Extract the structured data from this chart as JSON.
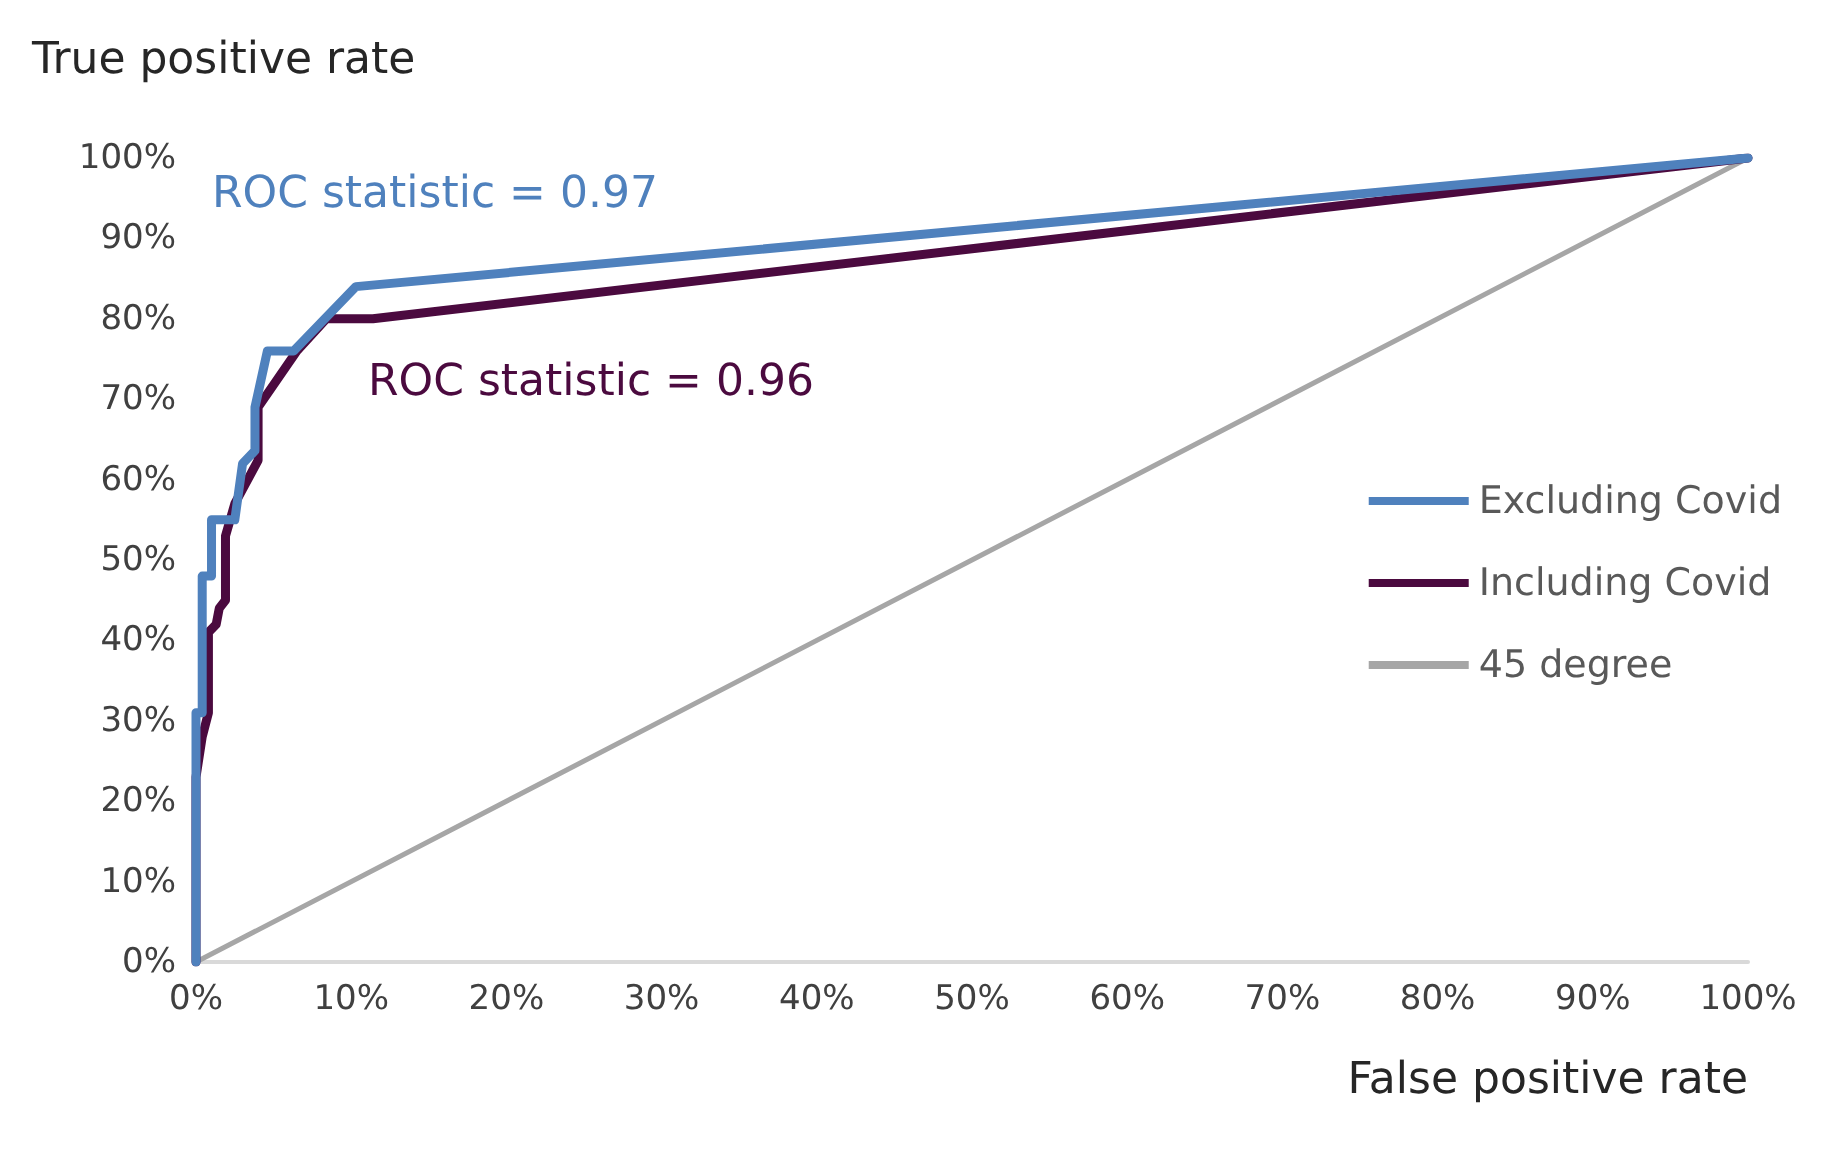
{
  "chart_data": {
    "type": "line",
    "xlabel": "False positive rate",
    "ylabel": "True positive rate",
    "series": [
      {
        "name": "Excluding Covid",
        "color": "#4f81bd",
        "x": [
          0,
          0,
          0.4,
          0.4,
          1,
          1,
          2.5,
          3,
          3.8,
          3.8,
          4.6,
          6.3,
          10.3,
          100
        ],
        "values": [
          0,
          31,
          31,
          48,
          48,
          55,
          55,
          62,
          63.6,
          69,
          76,
          76,
          84,
          100
        ]
      },
      {
        "name": "Including Covid",
        "color": "#4b0a3f",
        "x": [
          0,
          0,
          0.4,
          0.8,
          0.8,
          1.3,
          1.5,
          1.9,
          1.9,
          2.5,
          4,
          4,
          6.5,
          8.4,
          11.4,
          100
        ],
        "values": [
          0,
          23,
          28,
          31,
          41,
          42,
          44,
          45,
          53,
          57,
          62.4,
          69,
          76,
          80,
          80,
          100
        ]
      },
      {
        "name": "45 degree",
        "color": "#a6a6a6",
        "x": [
          0,
          100
        ],
        "values": [
          0,
          100
        ]
      }
    ],
    "annotations": [
      "ROC statistic = 0.97",
      "ROC statistic = 0.96"
    ],
    "xlim": [
      0,
      100
    ],
    "ylim": [
      0,
      100
    ],
    "xticks": [
      {
        "value": 0,
        "label": "0%"
      },
      {
        "value": 10,
        "label": "10%"
      },
      {
        "value": 20,
        "label": "20%"
      },
      {
        "value": 30,
        "label": "30%"
      },
      {
        "value": 40,
        "label": "40%"
      },
      {
        "value": 50,
        "label": "50%"
      },
      {
        "value": 60,
        "label": "60%"
      },
      {
        "value": 70,
        "label": "70%"
      },
      {
        "value": 80,
        "label": "80%"
      },
      {
        "value": 90,
        "label": "90%"
      },
      {
        "value": 100,
        "label": "100%"
      }
    ],
    "yticks": [
      {
        "value": 0,
        "label": "0%"
      },
      {
        "value": 10,
        "label": "10%"
      },
      {
        "value": 20,
        "label": "20%"
      },
      {
        "value": 30,
        "label": "30%"
      },
      {
        "value": 40,
        "label": "40%"
      },
      {
        "value": 50,
        "label": "50%"
      },
      {
        "value": 60,
        "label": "60%"
      },
      {
        "value": 70,
        "label": "70%"
      },
      {
        "value": 80,
        "label": "80%"
      },
      {
        "value": 90,
        "label": "90%"
      },
      {
        "value": 100,
        "label": "100%"
      }
    ],
    "legend": "right",
    "grid": false,
    "marker": "none",
    "line_style": "solid"
  }
}
